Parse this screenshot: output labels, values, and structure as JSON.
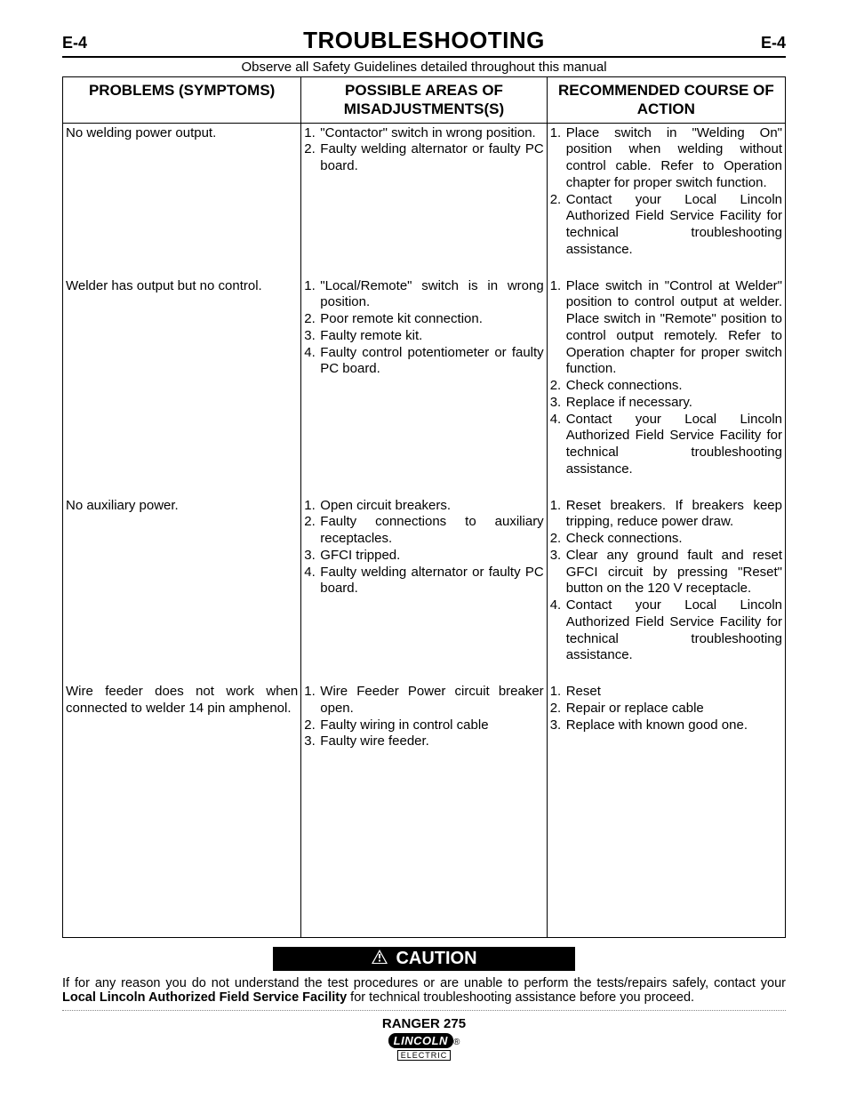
{
  "page_number": "E-4",
  "title": "TROUBLESHOOTING",
  "safety_note": "Observe all Safety Guidelines detailed throughout this manual",
  "columns": {
    "problems": "PROBLEMS (SYMPTOMS)",
    "causes": "POSSIBLE AREAS OF MISADJUSTMENTS(S)",
    "actions": "RECOMMENDED COURSE OF ACTION"
  },
  "rows": [
    {
      "problem": "No welding power output.",
      "causes": [
        "\"Contactor\" switch in wrong position.",
        "Faulty welding alternator or faulty PC board."
      ],
      "actions": [
        "Place switch in \"Welding On\" position when welding without control cable. Refer to Operation chapter for proper switch function.",
        "Contact your Local Lincoln Authorized Field Service Facility for technical troubleshooting assistance."
      ]
    },
    {
      "problem": "Welder has output but no control.",
      "causes": [
        "\"Local/Remote\" switch is in wrong position.",
        "Poor remote kit connection.",
        "Faulty remote kit.",
        "Faulty control potentiometer or faulty PC board."
      ],
      "actions": [
        "Place switch in \"Control at Welder\" position to control output at welder. Place switch in \"Remote\" position to control output remotely. Refer to Operation chapter for proper switch function.",
        "Check connections.",
        "Replace if necessary.",
        "Contact your Local Lincoln Authorized Field Service Facility for technical troubleshooting assistance."
      ]
    },
    {
      "problem": "No auxiliary power.",
      "causes": [
        "Open circuit breakers.",
        "Faulty connections to auxiliary receptacles.",
        "GFCI tripped.",
        "Faulty welding alternator or faulty PC board."
      ],
      "actions": [
        "Reset breakers. If breakers keep tripping, reduce power draw.",
        "Check connections.",
        "Clear any ground fault and reset GFCI circuit by pressing \"Reset\" button on the 120 V receptacle.",
        "Contact your Local Lincoln Authorized Field Service Facility for technical troubleshooting assistance."
      ]
    },
    {
      "problem": "Wire feeder does not work when connected to welder 14 pin amphenol.",
      "causes": [
        "Wire Feeder Power circuit breaker open.",
        "Faulty wiring in control cable",
        "Faulty wire feeder."
      ],
      "actions": [
        "Reset",
        "Repair or replace cable",
        "Replace with known good one."
      ]
    }
  ],
  "caution_label": "CAUTION",
  "caution_text_before": "If for any reason you do not understand the test procedures or are unable to perform the tests/repairs safely, contact your ",
  "caution_text_bold": "Local Lincoln Authorized Field Service Facility",
  "caution_text_after": " for technical troubleshooting assistance before you proceed.",
  "footer": {
    "model": "RANGER 275",
    "brand": "LINCOLN",
    "sub": "ELECTRIC"
  }
}
